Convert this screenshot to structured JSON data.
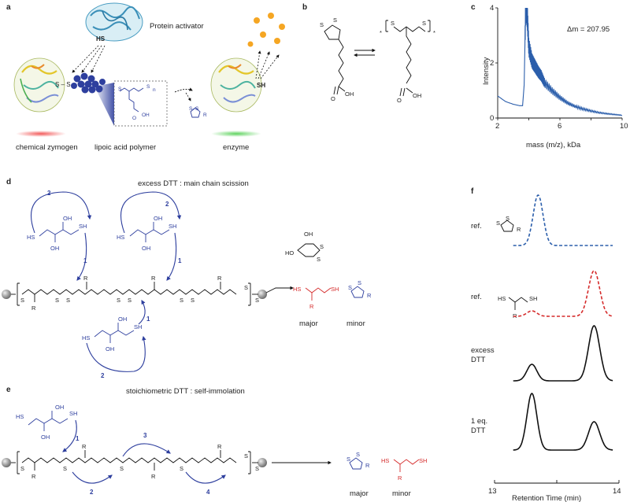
{
  "panel_letters": {
    "a": "a",
    "b": "b",
    "c": "c",
    "d": "d",
    "e": "e",
    "f": "f"
  },
  "panel_a": {
    "protein_activator": "Protein activator",
    "hs_label": "HS",
    "sh_label": "SH",
    "chemical_zymogen": "chemical zymogen",
    "lipoic_acid_polymer": "lipoic acid polymer",
    "enzyme": "enzyme",
    "inset_n": "n",
    "inset_s": "S",
    "inset_r": "R",
    "inset_oh": "OH",
    "inset_o": "O"
  },
  "panel_b": {
    "s": "S",
    "star": "*",
    "oh": "OH",
    "o": "O"
  },
  "panel_c": {
    "annotation": "Δm = 207.95",
    "chart_data": {
      "type": "line",
      "xlabel": "mass (m/z), kDa",
      "ylabel": "Intensity",
      "xlim": [
        2,
        10
      ],
      "ylim": [
        0,
        4
      ],
      "xticks": [
        "2",
        "4",
        "6",
        "8",
        "10"
      ],
      "yticks": [
        "0",
        "2",
        "4"
      ],
      "x": [
        2.0,
        2.5,
        3.0,
        3.4,
        3.6,
        3.7,
        3.8,
        3.9,
        4.0,
        4.2,
        4.4,
        4.6,
        4.8,
        5.0,
        5.5,
        6.0,
        6.5,
        7.0,
        7.5,
        8.0,
        8.5,
        9.0,
        9.5,
        10.0
      ],
      "values": [
        0.8,
        0.6,
        0.5,
        0.45,
        0.45,
        1.2,
        4.2,
        3.8,
        2.6,
        2.1,
        1.9,
        1.7,
        1.55,
        1.3,
        1.0,
        0.75,
        0.55,
        0.42,
        0.33,
        0.26,
        0.2,
        0.16,
        0.13,
        0.1
      ],
      "color": "#2b5eab"
    }
  },
  "panel_d": {
    "title": "excess DTT : main chain scission",
    "major": "major",
    "minor": "minor",
    "n1": "1",
    "n2": "2",
    "sh": "SH",
    "hs": "HS",
    "oh": "OH",
    "ho": "HO",
    "s": "S",
    "r": "R"
  },
  "panel_e": {
    "title": "stoichiometric DTT : self-immolation",
    "major": "major",
    "minor": "minor",
    "n1": "1",
    "n2": "2",
    "n3": "3",
    "n4": "4",
    "sh": "SH",
    "hs": "HS",
    "oh": "OH",
    "s": "S",
    "r": "R"
  },
  "panel_f": {
    "ref1": "ref.",
    "ref2": "ref.",
    "excess_dtt_line1": "excess",
    "excess_dtt_line2": "DTT",
    "one_eq_line1": "1 eq.",
    "one_eq_line2": "DTT",
    "xlabel": "Retention Time (min)",
    "x_min_label": "13",
    "x_max_label": "14",
    "hs": "HS",
    "sh": "SH",
    "s": "S",
    "r": "R",
    "chart_data": [
      {
        "type": "line",
        "name": "",
        "color": "#2b5eab",
        "style": "dashed",
        "peaks": [
          {
            "rt": 13.35,
            "height": 1.0,
            "width": 0.04
          }
        ]
      },
      {
        "type": "line",
        "name": "",
        "color": "#d52b2b",
        "style": "dashed",
        "peaks": [
          {
            "rt": 13.3,
            "height": 0.12,
            "width": 0.04
          },
          {
            "rt": 13.8,
            "height": 1.0,
            "width": 0.045
          }
        ]
      },
      {
        "type": "line",
        "name": "",
        "color": "#111111",
        "style": "solid",
        "peaks": [
          {
            "rt": 13.3,
            "height": 0.3,
            "width": 0.04
          },
          {
            "rt": 13.8,
            "height": 1.0,
            "width": 0.045
          }
        ]
      },
      {
        "type": "line",
        "name": "",
        "color": "#111111",
        "style": "solid",
        "peaks": [
          {
            "rt": 13.3,
            "height": 1.0,
            "width": 0.04
          },
          {
            "rt": 13.8,
            "height": 0.5,
            "width": 0.045
          }
        ]
      }
    ]
  },
  "colors": {
    "blue": "#2e3f9e",
    "red": "#d52b2b",
    "orange": "#f5a623",
    "spectrum": "#2b5eab"
  }
}
